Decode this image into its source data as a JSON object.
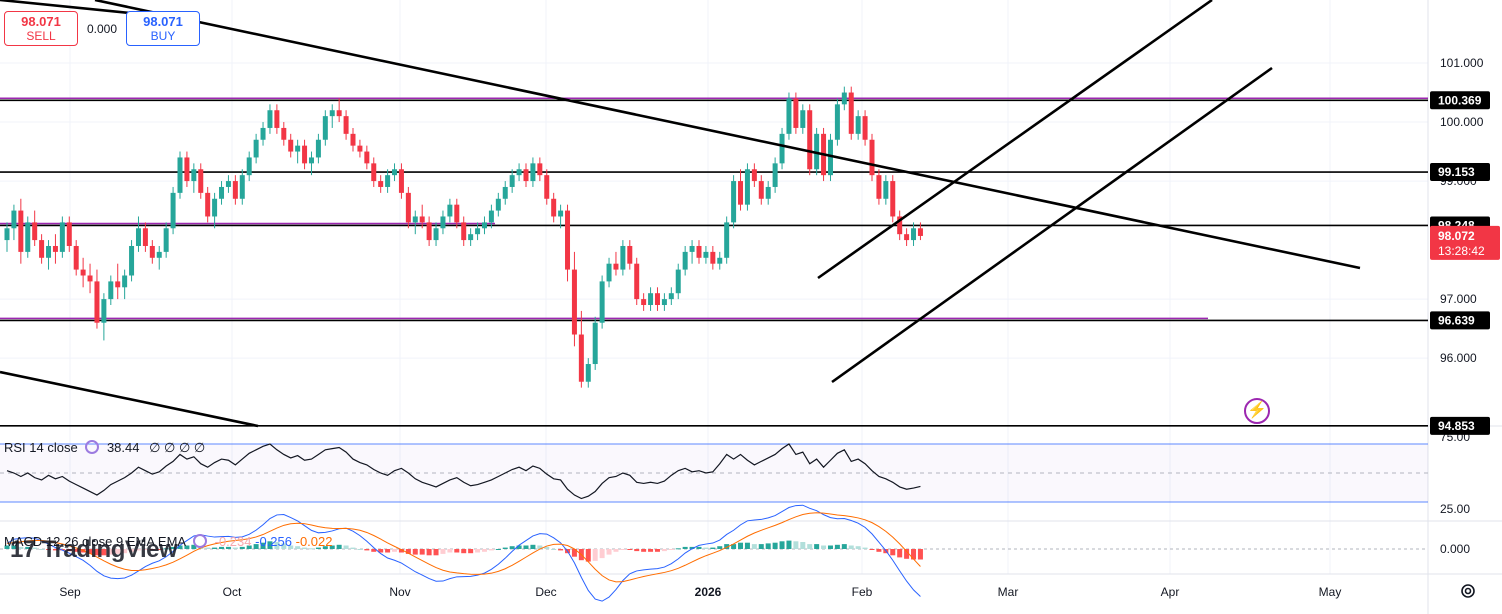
{
  "trade_panel": {
    "sell_price": "98.071",
    "sell_label": "SELL",
    "spread": "0.000",
    "buy_price": "98.071",
    "buy_label": "BUY"
  },
  "indicators": {
    "rsi_label": "RSI 14 close",
    "rsi_value": "38.44",
    "rsi_extra": "∅ ∅ ∅ ∅",
    "macd_label": "MACD 12 26 close 9 EMA EMA",
    "macd_values": [
      "-0.234",
      "-0.256",
      "-0.022"
    ]
  },
  "watermark": "TradingView",
  "colors": {
    "up": "#26a69a",
    "down": "#f23645",
    "level_badge": "#000000",
    "price_badge": "#f23645",
    "purple_line": "#9c27b0",
    "rsi_line": "#131722",
    "macd_line": "#2962ff",
    "signal_line": "#ff6d00"
  },
  "icons": [
    "lightning-icon",
    "gear-icon",
    "tradingview-logo-icon"
  ],
  "chart_data": [
    {
      "type": "candlestick",
      "x_axis_labels": [
        "Sep",
        "Oct",
        "Nov",
        "Dec",
        "2026",
        "Feb",
        "Mar",
        "Apr",
        "May"
      ],
      "y_axis_ticks": [
        "101.000",
        "100.000",
        "99.000",
        "97.000",
        "96.000"
      ],
      "y_range": [
        94.85,
        102.0
      ],
      "current_price": "98.072",
      "countdown": "13:28:42",
      "horizontal_levels": [
        "100.369",
        "99.153",
        "98.248",
        "96.639",
        "94.853"
      ],
      "candles_ohlc": [
        [
          98.0,
          98.3,
          97.8,
          98.2
        ],
        [
          98.2,
          98.6,
          98.0,
          98.5
        ],
        [
          98.5,
          98.7,
          97.6,
          97.8
        ],
        [
          97.8,
          98.4,
          97.7,
          98.3
        ],
        [
          98.3,
          98.5,
          97.9,
          98.0
        ],
        [
          98.0,
          98.1,
          97.6,
          97.7
        ],
        [
          97.7,
          98.0,
          97.5,
          97.9
        ],
        [
          97.9,
          98.1,
          97.6,
          97.8
        ],
        [
          97.8,
          98.4,
          97.7,
          98.3
        ],
        [
          98.3,
          98.4,
          97.8,
          97.9
        ],
        [
          97.9,
          98.0,
          97.4,
          97.5
        ],
        [
          97.5,
          97.7,
          97.2,
          97.4
        ],
        [
          97.4,
          97.6,
          97.1,
          97.3
        ],
        [
          97.3,
          97.5,
          96.5,
          96.6
        ],
        [
          96.6,
          97.1,
          96.3,
          97.0
        ],
        [
          97.0,
          97.4,
          96.9,
          97.3
        ],
        [
          97.3,
          97.6,
          97.0,
          97.2
        ],
        [
          97.2,
          97.5,
          97.0,
          97.4
        ],
        [
          97.4,
          98.0,
          97.3,
          97.9
        ],
        [
          97.9,
          98.4,
          97.8,
          98.2
        ],
        [
          98.2,
          98.3,
          97.8,
          97.9
        ],
        [
          97.9,
          98.0,
          97.6,
          97.7
        ],
        [
          97.7,
          97.9,
          97.5,
          97.8
        ],
        [
          97.8,
          98.3,
          97.7,
          98.2
        ],
        [
          98.2,
          98.9,
          98.1,
          98.8
        ],
        [
          98.8,
          99.5,
          98.7,
          99.4
        ],
        [
          99.4,
          99.5,
          98.9,
          99.0
        ],
        [
          99.0,
          99.3,
          98.8,
          99.2
        ],
        [
          99.2,
          99.3,
          98.7,
          98.8
        ],
        [
          98.8,
          98.9,
          98.3,
          98.4
        ],
        [
          98.4,
          98.8,
          98.2,
          98.7
        ],
        [
          98.7,
          99.0,
          98.6,
          98.9
        ],
        [
          98.9,
          99.1,
          98.8,
          99.0
        ],
        [
          99.0,
          99.1,
          98.6,
          98.7
        ],
        [
          98.7,
          99.2,
          98.6,
          99.1
        ],
        [
          99.1,
          99.5,
          99.0,
          99.4
        ],
        [
          99.4,
          99.8,
          99.3,
          99.7
        ],
        [
          99.7,
          100.0,
          99.6,
          99.9
        ],
        [
          99.9,
          100.3,
          99.8,
          100.2
        ],
        [
          100.2,
          100.3,
          99.8,
          99.9
        ],
        [
          99.9,
          100.0,
          99.6,
          99.7
        ],
        [
          99.7,
          99.8,
          99.4,
          99.5
        ],
        [
          99.5,
          99.7,
          99.3,
          99.6
        ],
        [
          99.6,
          99.7,
          99.2,
          99.3
        ],
        [
          99.3,
          99.5,
          99.1,
          99.4
        ],
        [
          99.4,
          99.8,
          99.3,
          99.7
        ],
        [
          99.7,
          100.2,
          99.6,
          100.1
        ],
        [
          100.1,
          100.3,
          99.9,
          100.2
        ],
        [
          100.2,
          100.4,
          100.0,
          100.1
        ],
        [
          100.1,
          100.2,
          99.7,
          99.8
        ],
        [
          99.8,
          99.9,
          99.5,
          99.6
        ],
        [
          99.6,
          99.7,
          99.4,
          99.5
        ],
        [
          99.5,
          99.6,
          99.2,
          99.3
        ],
        [
          99.3,
          99.4,
          98.9,
          99.0
        ],
        [
          99.0,
          99.1,
          98.8,
          98.9
        ],
        [
          98.9,
          99.2,
          98.8,
          99.1
        ],
        [
          99.1,
          99.3,
          99.0,
          99.2
        ],
        [
          99.2,
          99.3,
          98.7,
          98.8
        ],
        [
          98.8,
          98.9,
          98.2,
          98.3
        ],
        [
          98.3,
          98.5,
          98.1,
          98.4
        ],
        [
          98.4,
          98.6,
          98.2,
          98.3
        ],
        [
          98.3,
          98.4,
          97.9,
          98.0
        ],
        [
          98.0,
          98.3,
          97.9,
          98.2
        ],
        [
          98.2,
          98.5,
          98.1,
          98.4
        ],
        [
          98.4,
          98.7,
          98.3,
          98.6
        ],
        [
          98.6,
          98.7,
          98.2,
          98.3
        ],
        [
          98.3,
          98.4,
          97.9,
          98.0
        ],
        [
          98.0,
          98.2,
          97.9,
          98.1
        ],
        [
          98.1,
          98.3,
          98.0,
          98.2
        ],
        [
          98.2,
          98.4,
          98.1,
          98.3
        ],
        [
          98.3,
          98.6,
          98.2,
          98.5
        ],
        [
          98.5,
          98.8,
          98.4,
          98.7
        ],
        [
          98.7,
          99.0,
          98.6,
          98.9
        ],
        [
          98.9,
          99.2,
          98.8,
          99.1
        ],
        [
          99.1,
          99.3,
          99.0,
          99.2
        ],
        [
          99.2,
          99.3,
          98.9,
          99.0
        ],
        [
          99.0,
          99.4,
          98.9,
          99.3
        ],
        [
          99.3,
          99.4,
          99.0,
          99.1
        ],
        [
          99.1,
          99.2,
          98.6,
          98.7
        ],
        [
          98.7,
          98.8,
          98.3,
          98.4
        ],
        [
          98.4,
          98.6,
          98.2,
          98.5
        ],
        [
          98.5,
          98.6,
          97.3,
          97.5
        ],
        [
          97.5,
          97.8,
          96.2,
          96.4
        ],
        [
          96.4,
          96.8,
          95.5,
          95.6
        ],
        [
          95.6,
          96.0,
          95.5,
          95.9
        ],
        [
          95.9,
          96.7,
          95.8,
          96.6
        ],
        [
          96.6,
          97.4,
          96.5,
          97.3
        ],
        [
          97.3,
          97.7,
          97.2,
          97.6
        ],
        [
          97.6,
          97.8,
          97.4,
          97.5
        ],
        [
          97.5,
          98.0,
          97.4,
          97.9
        ],
        [
          97.9,
          98.0,
          97.5,
          97.6
        ],
        [
          97.6,
          97.7,
          96.9,
          97.0
        ],
        [
          97.0,
          97.1,
          96.8,
          96.9
        ],
        [
          96.9,
          97.2,
          96.8,
          97.1
        ],
        [
          97.1,
          97.2,
          96.8,
          96.9
        ],
        [
          96.9,
          97.1,
          96.8,
          97.0
        ],
        [
          97.0,
          97.2,
          96.9,
          97.1
        ],
        [
          97.1,
          97.6,
          97.0,
          97.5
        ],
        [
          97.5,
          97.9,
          97.4,
          97.8
        ],
        [
          97.8,
          98.0,
          97.6,
          97.9
        ],
        [
          97.9,
          98.0,
          97.6,
          97.7
        ],
        [
          97.7,
          97.9,
          97.6,
          97.8
        ],
        [
          97.8,
          97.9,
          97.5,
          97.6
        ],
        [
          97.6,
          97.8,
          97.5,
          97.7
        ],
        [
          97.7,
          98.4,
          97.6,
          98.3
        ],
        [
          98.3,
          99.1,
          98.2,
          99.0
        ],
        [
          99.0,
          99.2,
          98.5,
          98.6
        ],
        [
          98.6,
          99.3,
          98.5,
          99.2
        ],
        [
          99.2,
          99.3,
          98.9,
          99.0
        ],
        [
          99.0,
          99.1,
          98.6,
          98.7
        ],
        [
          98.7,
          99.0,
          98.6,
          98.9
        ],
        [
          98.9,
          99.4,
          98.8,
          99.3
        ],
        [
          99.3,
          99.9,
          99.2,
          99.8
        ],
        [
          99.8,
          100.5,
          99.7,
          100.4
        ],
        [
          100.4,
          100.5,
          99.8,
          99.9
        ],
        [
          99.9,
          100.3,
          99.8,
          100.2
        ],
        [
          100.2,
          100.3,
          99.1,
          99.2
        ],
        [
          99.2,
          99.9,
          99.1,
          99.8
        ],
        [
          99.8,
          99.9,
          99.0,
          99.1
        ],
        [
          99.1,
          99.8,
          99.0,
          99.7
        ],
        [
          99.7,
          100.4,
          99.6,
          100.3
        ],
        [
          100.3,
          100.6,
          100.2,
          100.5
        ],
        [
          100.5,
          100.6,
          99.7,
          99.8
        ],
        [
          99.8,
          100.2,
          99.7,
          100.1
        ],
        [
          100.1,
          100.2,
          99.6,
          99.7
        ],
        [
          99.7,
          99.8,
          99.0,
          99.1
        ],
        [
          99.1,
          99.2,
          98.6,
          98.7
        ],
        [
          98.7,
          99.1,
          98.6,
          99.0
        ],
        [
          99.0,
          99.1,
          98.3,
          98.4
        ],
        [
          98.4,
          98.5,
          98.0,
          98.1
        ],
        [
          98.1,
          98.2,
          97.9,
          98.0
        ],
        [
          98.0,
          98.3,
          97.9,
          98.2
        ],
        [
          98.2,
          98.3,
          98.0,
          98.07
        ]
      ],
      "rsi_series": [
        52,
        50,
        47,
        50,
        46,
        44,
        48,
        45,
        47,
        43,
        40,
        37,
        34,
        31,
        35,
        40,
        43,
        46,
        50,
        55,
        52,
        49,
        51,
        56,
        60,
        66,
        62,
        64,
        58,
        55,
        59,
        62,
        61,
        57,
        62,
        67,
        70,
        73,
        75,
        70,
        66,
        63,
        65,
        61,
        62,
        66,
        70,
        71,
        72,
        68,
        62,
        59,
        57,
        53,
        50,
        48,
        52,
        54,
        50,
        45,
        42,
        40,
        38,
        41,
        44,
        46,
        42,
        39,
        40,
        42,
        44,
        47,
        50,
        53,
        55,
        52,
        56,
        54,
        49,
        45,
        44,
        36,
        31,
        28,
        30,
        34,
        41,
        46,
        47,
        50,
        48,
        42,
        41,
        42,
        41,
        43,
        48,
        52,
        54,
        51,
        52,
        50,
        51,
        58,
        66,
        62,
        66,
        61,
        57,
        60,
        63,
        66,
        71,
        75,
        66,
        68,
        58,
        62,
        55,
        61,
        67,
        70,
        60,
        62,
        58,
        52,
        47,
        45,
        42,
        38,
        36,
        37,
        38.44
      ],
      "rsi_levels": [
        75,
        25
      ],
      "rsi_ticks": [
        "75.00",
        "25.00"
      ],
      "macd_ticks": [
        "0.000"
      ],
      "macd_hist": [
        0.05,
        0.05,
        0.03,
        0.03,
        0.02,
        0.0,
        -0.01,
        -0.02,
        -0.02,
        -0.03,
        -0.04,
        -0.05,
        -0.07,
        -0.09,
        -0.09,
        -0.08,
        -0.07,
        -0.06,
        -0.04,
        -0.02,
        -0.01,
        -0.01,
        -0.01,
        0.01,
        0.03,
        0.05,
        0.05,
        0.06,
        0.04,
        0.02,
        0.02,
        0.03,
        0.03,
        0.02,
        0.03,
        0.05,
        0.07,
        0.09,
        0.11,
        0.1,
        0.08,
        0.05,
        0.04,
        0.02,
        0.01,
        0.02,
        0.04,
        0.05,
        0.06,
        0.05,
        0.02,
        0.0,
        -0.02,
        -0.04,
        -0.05,
        -0.05,
        -0.04,
        -0.05,
        -0.07,
        -0.08,
        -0.08,
        -0.09,
        -0.09,
        -0.07,
        -0.05,
        -0.05,
        -0.06,
        -0.06,
        -0.05,
        -0.04,
        -0.02,
        0.0,
        0.02,
        0.04,
        0.05,
        0.05,
        0.06,
        0.05,
        0.03,
        0.0,
        -0.02,
        -0.06,
        -0.11,
        -0.16,
        -0.18,
        -0.17,
        -0.13,
        -0.08,
        -0.04,
        -0.01,
        -0.01,
        -0.03,
        -0.04,
        -0.04,
        -0.04,
        -0.03,
        -0.01,
        0.01,
        0.03,
        0.03,
        0.03,
        0.02,
        0.02,
        0.04,
        0.07,
        0.07,
        0.09,
        0.09,
        0.07,
        0.07,
        0.08,
        0.09,
        0.11,
        0.12,
        0.11,
        0.1,
        0.07,
        0.07,
        0.05,
        0.05,
        0.06,
        0.07,
        0.05,
        0.04,
        0.02,
        -0.01,
        -0.04,
        -0.06,
        -0.09,
        -0.12,
        -0.14,
        -0.15,
        -0.15
      ]
    }
  ]
}
